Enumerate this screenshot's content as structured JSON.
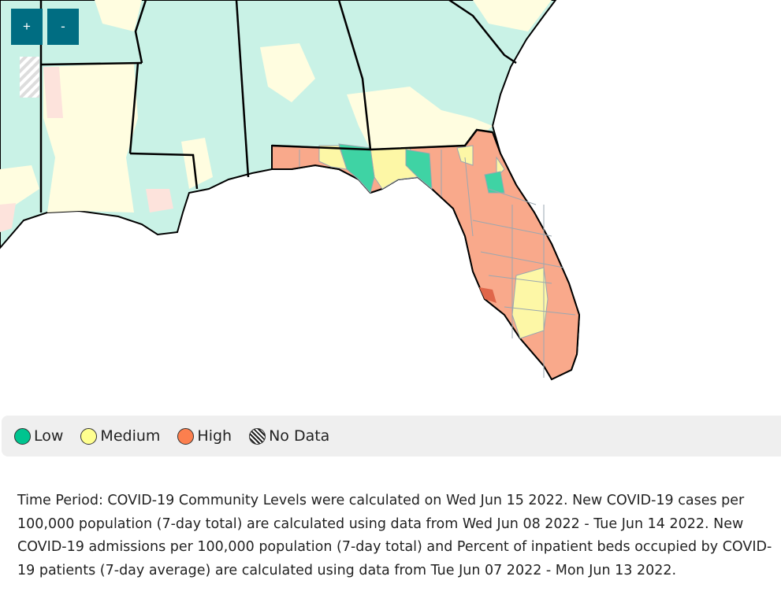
{
  "map": {
    "zoom_in_label": "+",
    "zoom_out_label": "-",
    "colors": {
      "low": "#00c48f",
      "medium": "#ffff8f",
      "high": "#fc7f4e",
      "low_faded": "#c9f2e6",
      "medium_faded": "#fffde0",
      "high_faded": "#fde3dc",
      "border": "#000000",
      "county_line": "#9aa7b0"
    }
  },
  "legend": {
    "items": [
      {
        "label": "Low",
        "color": "#00c48f",
        "icon": "circle"
      },
      {
        "label": "Medium",
        "color": "#ffff8f",
        "icon": "circle"
      },
      {
        "label": "High",
        "color": "#fc7f4e",
        "icon": "circle"
      },
      {
        "label": "No Data",
        "color": "hatched",
        "icon": "hatched-circle"
      }
    ]
  },
  "description": "Time Period: COVID-19 Community Levels were calculated on Wed Jun 15 2022. New COVID-19 cases per 100,000 population (7-day total) are calculated using data from Wed Jun 08 2022 - Tue Jun 14 2022. New COVID-19 admissions per 100,000 population (7-day total) and Percent of inpatient beds occupied by COVID-19 patients (7-day average) are calculated using data from Tue Jun 07 2022 - Mon Jun 13 2022."
}
